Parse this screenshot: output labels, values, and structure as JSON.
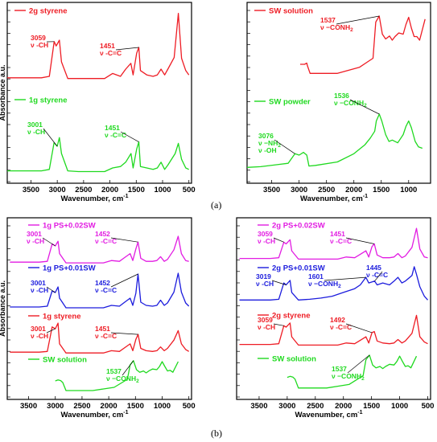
{
  "figure": {
    "label_a": "(a)",
    "label_b": "(b)",
    "axis_x_label": "Wavenumber, cm",
    "axis_x_sup": "-1",
    "axis_y_label": "Absorbance a.u.",
    "x_ticks": [
      "4000",
      "3500",
      "3000",
      "2500",
      "2000",
      "1500",
      "1000",
      "500"
    ]
  },
  "colors": {
    "red": "#ee1c24",
    "green": "#1fd91f",
    "magenta": "#e21ce2",
    "blue": "#1c1cdd",
    "black": "#000000"
  },
  "chart_data": [
    {
      "type": "line",
      "panel": "a-left",
      "xlabel": "Wavenumber, cm-1",
      "ylabel": "Absorbance a.u.",
      "xlim": [
        4000,
        400
      ],
      "x_reversed": true,
      "series": [
        {
          "name": "2g styrene",
          "color": "#ee1c24",
          "x": [
            3950,
            3300,
            3150,
            3059,
            3020,
            2960,
            2920,
            2800,
            2600,
            2400,
            2100,
            1950,
            1800,
            1700,
            1602,
            1560,
            1492,
            1451,
            1420,
            1300,
            1180,
            1100,
            1030,
            960,
            900,
            780,
            700,
            640,
            560,
            500
          ],
          "values": [
            0.08,
            0.08,
            0.1,
            0.58,
            0.52,
            0.6,
            0.3,
            0.07,
            0.07,
            0.07,
            0.07,
            0.14,
            0.1,
            0.2,
            0.28,
            0.12,
            0.42,
            0.5,
            0.18,
            0.12,
            0.1,
            0.12,
            0.2,
            0.12,
            0.2,
            0.36,
            0.97,
            0.35,
            0.18,
            0.12
          ]
        },
        {
          "name": "1g styrene",
          "color": "#1fd91f",
          "x": [
            3950,
            3300,
            3150,
            3060,
            3001,
            2960,
            2920,
            2800,
            2600,
            2400,
            2100,
            1950,
            1800,
            1700,
            1600,
            1560,
            1492,
            1451,
            1420,
            1300,
            1180,
            1100,
            1030,
            960,
            900,
            760,
            700,
            640,
            560,
            500
          ],
          "values": [
            0.06,
            0.06,
            0.08,
            0.45,
            0.4,
            0.52,
            0.3,
            0.06,
            0.05,
            0.05,
            0.05,
            0.1,
            0.12,
            0.18,
            0.3,
            0.1,
            0.36,
            0.46,
            0.12,
            0.1,
            0.08,
            0.1,
            0.18,
            0.08,
            0.14,
            0.3,
            0.44,
            0.22,
            0.1,
            0.08
          ]
        }
      ],
      "annotations": [
        {
          "series": "2g styrene",
          "lines": [
            "3059",
            "ν -CH"
          ],
          "x": 3059
        },
        {
          "series": "2g styrene",
          "lines": [
            "1451",
            "ν -C=C"
          ],
          "x": 1451
        },
        {
          "series": "1g styrene",
          "lines": [
            "3001",
            "ν -CH"
          ],
          "x": 3001
        },
        {
          "series": "1g styrene",
          "lines": [
            "1451",
            "ν -C=C"
          ],
          "x": 1451
        }
      ]
    },
    {
      "type": "line",
      "panel": "a-right",
      "xlabel": "Wavenumber, cm-1",
      "xlim": [
        4000,
        400
      ],
      "x_reversed": true,
      "series": [
        {
          "name": "SW solution",
          "color": "#ee1c24",
          "x": [
            2980,
            2900,
            2860,
            2850,
            2800,
            2700,
            2300,
            2100,
            1900,
            1750,
            1650,
            1600,
            1537,
            1480,
            1420,
            1350,
            1300,
            1250,
            1180,
            1100,
            1050,
            1000,
            950,
            900,
            850,
            800,
            700
          ],
          "values": [
            0.2,
            0.2,
            0.22,
            0.18,
            0.05,
            0.05,
            0.05,
            0.1,
            0.15,
            0.24,
            0.3,
            0.9,
            1.0,
            0.7,
            0.62,
            0.67,
            0.6,
            0.66,
            0.72,
            0.7,
            0.86,
            0.98,
            0.8,
            0.66,
            0.66,
            0.6,
            0.95
          ]
        },
        {
          "name": "SW powder",
          "color": "#1fd91f",
          "x": [
            3950,
            3700,
            3400,
            3200,
            3076,
            3000,
            2920,
            2860,
            2820,
            2700,
            2300,
            2000,
            1800,
            1700,
            1620,
            1590,
            1536,
            1490,
            1420,
            1360,
            1300,
            1200,
            1100,
            1050,
            1000,
            950,
            880,
            820,
            750
          ],
          "values": [
            0.02,
            0.03,
            0.06,
            0.08,
            0.22,
            0.2,
            0.24,
            0.2,
            0.04,
            0.05,
            0.1,
            0.22,
            0.35,
            0.45,
            0.55,
            0.7,
            0.8,
            0.7,
            0.5,
            0.4,
            0.42,
            0.38,
            0.5,
            0.62,
            0.7,
            0.6,
            0.4,
            0.32,
            0.3
          ]
        }
      ],
      "annotations": [
        {
          "series": "SW solution",
          "lines": [
            "1537",
            "ν −CONH2"
          ],
          "x": 1537
        },
        {
          "series": "SW powder",
          "lines": [
            "1536",
            "ν −CONH2"
          ],
          "x": 1536
        },
        {
          "series": "SW powder",
          "lines": [
            "3076",
            "ν −NH2",
            "ν -OH"
          ],
          "x": 3076
        }
      ]
    },
    {
      "type": "line",
      "panel": "b-left",
      "xlabel": "Wavenumber, cm-1",
      "ylabel": "Absorbance a.u.",
      "xlim": [
        4000,
        400
      ],
      "x_reversed": true,
      "series": [
        {
          "name": "1g PS+0.02SW",
          "color": "#e21ce2",
          "x": [
            3850,
            3300,
            3150,
            3060,
            3001,
            2950,
            2920,
            2800,
            2600,
            2400,
            2100,
            1950,
            1800,
            1700,
            1600,
            1550,
            1492,
            1452,
            1400,
            1300,
            1180,
            1100,
            1030,
            960,
            900,
            780,
            700,
            640,
            560,
            500
          ],
          "values": [
            0.08,
            0.08,
            0.1,
            0.55,
            0.5,
            0.62,
            0.3,
            0.06,
            0.06,
            0.06,
            0.06,
            0.12,
            0.1,
            0.2,
            0.3,
            0.12,
            0.42,
            0.6,
            0.18,
            0.1,
            0.1,
            0.12,
            0.22,
            0.1,
            0.15,
            0.4,
            0.75,
            0.3,
            0.12,
            0.1
          ]
        },
        {
          "name": "1g PS+0.01SW",
          "color": "#1c1cdd",
          "x": [
            3850,
            3300,
            3150,
            3060,
            3001,
            2950,
            2920,
            2800,
            2600,
            2400,
            2100,
            1950,
            1800,
            1700,
            1600,
            1550,
            1492,
            1452,
            1400,
            1300,
            1180,
            1100,
            1030,
            960,
            900,
            780,
            700,
            640,
            560,
            500
          ],
          "values": [
            0.08,
            0.08,
            0.1,
            0.48,
            0.44,
            0.58,
            0.3,
            0.06,
            0.06,
            0.06,
            0.06,
            0.12,
            0.1,
            0.2,
            0.3,
            0.12,
            0.42,
            0.9,
            0.2,
            0.12,
            0.1,
            0.12,
            0.25,
            0.12,
            0.18,
            0.45,
            0.92,
            0.45,
            0.18,
            0.1
          ]
        },
        {
          "name": "1g styrene",
          "color": "#ee1c24",
          "x": [
            3850,
            3300,
            3150,
            3060,
            3001,
            2950,
            2920,
            2800,
            2600,
            2400,
            2100,
            1950,
            1800,
            1700,
            1600,
            1550,
            1492,
            1451,
            1400,
            1300,
            1180,
            1100,
            1030,
            960,
            900,
            780,
            700,
            640,
            560,
            500
          ],
          "values": [
            0.08,
            0.08,
            0.1,
            0.75,
            0.7,
            0.85,
            0.3,
            0.06,
            0.06,
            0.06,
            0.06,
            0.12,
            0.1,
            0.2,
            0.3,
            0.12,
            0.42,
            0.55,
            0.18,
            0.12,
            0.1,
            0.12,
            0.22,
            0.12,
            0.18,
            0.4,
            0.65,
            0.3,
            0.15,
            0.1
          ]
        },
        {
          "name": "SW solution",
          "color": "#1fd91f",
          "x": [
            3000,
            2950,
            2900,
            2860,
            2800,
            2700,
            2300,
            2100,
            1900,
            1750,
            1650,
            1600,
            1537,
            1480,
            1420,
            1350,
            1300,
            1250,
            1180,
            1100,
            1050,
            1000,
            950,
            900,
            850,
            800,
            700
          ],
          "values": [
            0.35,
            0.38,
            0.36,
            0.3,
            0.05,
            0.05,
            0.05,
            0.1,
            0.15,
            0.3,
            0.4,
            0.85,
            0.98,
            0.7,
            0.62,
            0.66,
            0.6,
            0.66,
            0.72,
            0.7,
            0.8,
            0.95,
            0.8,
            0.66,
            0.68,
            0.62,
            0.95
          ]
        }
      ],
      "annotations": [
        {
          "series": "1g PS+0.02SW",
          "lines": [
            "3001",
            "ν -CH"
          ],
          "x": 3001
        },
        {
          "series": "1g PS+0.02SW",
          "lines": [
            "1452",
            "ν -C=C"
          ],
          "x": 1452
        },
        {
          "series": "1g PS+0.01SW",
          "lines": [
            "3001",
            "ν -CH"
          ],
          "x": 3001
        },
        {
          "series": "1g PS+0.01SW",
          "lines": [
            "1452",
            "ν -C=C"
          ],
          "x": 1452
        },
        {
          "series": "1g styrene",
          "lines": [
            "3001",
            "ν -CH"
          ],
          "x": 3001
        },
        {
          "series": "1g styrene",
          "lines": [
            "1451",
            "ν -C=C"
          ],
          "x": 1451
        },
        {
          "series": "SW solution",
          "lines": [
            "1537",
            "ν −CONH2"
          ],
          "x": 1537
        }
      ]
    },
    {
      "type": "line",
      "panel": "b-right",
      "xlabel": "Wavenumber, cm-1",
      "xlim": [
        4000,
        400
      ],
      "x_reversed": true,
      "series": [
        {
          "name": "2g PS+0.02SW",
          "color": "#e21ce2",
          "x": [
            3850,
            3300,
            3150,
            3059,
            3020,
            2950,
            2920,
            2800,
            2600,
            2400,
            2100,
            1950,
            1800,
            1700,
            1600,
            1550,
            1492,
            1451,
            1400,
            1300,
            1180,
            1100,
            1030,
            960,
            900,
            780,
            700,
            640,
            560,
            500
          ],
          "values": [
            0.08,
            0.08,
            0.1,
            0.55,
            0.5,
            0.62,
            0.3,
            0.06,
            0.06,
            0.06,
            0.06,
            0.12,
            0.1,
            0.2,
            0.3,
            0.12,
            0.42,
            0.5,
            0.18,
            0.1,
            0.1,
            0.12,
            0.22,
            0.1,
            0.15,
            0.4,
            0.95,
            0.35,
            0.12,
            0.1
          ]
        },
        {
          "name": "2g PS+0.01SW",
          "color": "#1c1cdd",
          "x": [
            3850,
            3300,
            3150,
            3060,
            3019,
            2950,
            2920,
            2800,
            2600,
            2400,
            2200,
            2000,
            1800,
            1700,
            1601,
            1550,
            1445,
            1400,
            1300,
            1180,
            1100,
            1030,
            960,
            900,
            780,
            740,
            700,
            640,
            560,
            500
          ],
          "values": [
            0.1,
            0.1,
            0.12,
            0.55,
            0.5,
            0.62,
            0.3,
            0.1,
            0.12,
            0.15,
            0.2,
            0.3,
            0.4,
            0.5,
            0.7,
            0.55,
            0.6,
            0.5,
            0.55,
            0.5,
            0.6,
            0.7,
            0.55,
            0.6,
            0.75,
            0.98,
            0.78,
            0.45,
            0.2,
            0.1
          ]
        },
        {
          "name": "2g styrene",
          "color": "#ee1c24",
          "x": [
            3850,
            3300,
            3150,
            3059,
            3020,
            2950,
            2920,
            2800,
            2600,
            2400,
            2100,
            1950,
            1800,
            1700,
            1600,
            1550,
            1492,
            1451,
            1400,
            1300,
            1180,
            1100,
            1030,
            960,
            900,
            780,
            700,
            640,
            560,
            500
          ],
          "values": [
            0.08,
            0.08,
            0.1,
            0.62,
            0.58,
            0.7,
            0.3,
            0.06,
            0.06,
            0.06,
            0.06,
            0.12,
            0.1,
            0.2,
            0.3,
            0.12,
            0.42,
            0.45,
            0.18,
            0.12,
            0.1,
            0.12,
            0.22,
            0.12,
            0.18,
            0.4,
            0.92,
            0.3,
            0.15,
            0.1
          ]
        },
        {
          "name": "SW solution",
          "color": "#1fd91f",
          "x": [
            3000,
            2950,
            2900,
            2860,
            2800,
            2700,
            2300,
            2100,
            1900,
            1750,
            1650,
            1600,
            1537,
            1480,
            1420,
            1350,
            1300,
            1250,
            1180,
            1100,
            1050,
            1000,
            950,
            900,
            850,
            800,
            700
          ],
          "values": [
            0.35,
            0.38,
            0.36,
            0.3,
            0.05,
            0.05,
            0.05,
            0.1,
            0.15,
            0.3,
            0.4,
            0.85,
            0.98,
            0.7,
            0.62,
            0.66,
            0.6,
            0.66,
            0.72,
            0.7,
            0.8,
            0.95,
            0.8,
            0.66,
            0.68,
            0.62,
            0.95
          ]
        }
      ],
      "annotations": [
        {
          "series": "2g PS+0.02SW",
          "lines": [
            "3059",
            "ν -CH"
          ],
          "x": 3059
        },
        {
          "series": "2g PS+0.02SW",
          "lines": [
            "1451",
            "ν -C=C"
          ],
          "x": 1451
        },
        {
          "series": "2g PS+0.01SW",
          "lines": [
            "3019",
            "ν -CH"
          ],
          "x": 3019
        },
        {
          "series": "2g PS+0.01SW",
          "lines": [
            "1601",
            "ν −CONH2"
          ],
          "x": 1601
        },
        {
          "series": "2g PS+0.01SW",
          "lines": [
            "1445",
            "ν -C=C"
          ],
          "x": 1445
        },
        {
          "series": "2g styrene",
          "lines": [
            "3059",
            "ν -CH"
          ],
          "x": 3059
        },
        {
          "series": "2g styrene",
          "lines": [
            "1492",
            "ν -C=C"
          ],
          "x": 1492
        },
        {
          "series": "SW solution",
          "lines": [
            "1537",
            "ν −CONH2"
          ],
          "x": 1537
        }
      ]
    }
  ]
}
